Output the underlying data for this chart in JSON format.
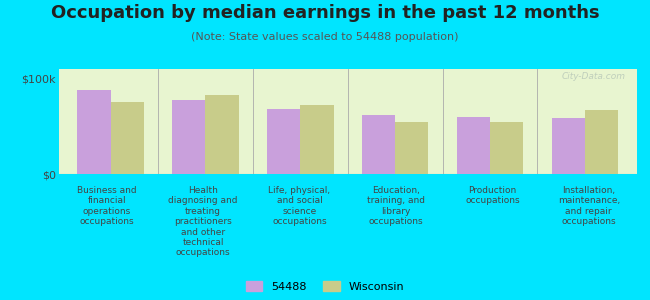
{
  "title": "Occupation by median earnings in the past 12 months",
  "subtitle": "(Note: State values scaled to 54488 population)",
  "categories": [
    "Business and\nfinancial\noperations\noccupations",
    "Health\ndiagnosing and\ntreating\npractitioners\nand other\ntechnical\noccupations",
    "Life, physical,\nand social\nscience\noccupations",
    "Education,\ntraining, and\nlibrary\noccupations",
    "Production\noccupations",
    "Installation,\nmaintenance,\nand repair\noccupations"
  ],
  "values_54488": [
    88000,
    78000,
    68000,
    62000,
    60000,
    59000
  ],
  "values_wisconsin": [
    75000,
    83000,
    72000,
    55000,
    54000,
    67000
  ],
  "color_54488": "#c9a0dc",
  "color_wisconsin": "#c8cc8a",
  "bar_width": 0.35,
  "ylim": [
    0,
    110000
  ],
  "ytick_labels": [
    "$0",
    "$100k"
  ],
  "background_color": "#e8f5d0",
  "outer_background": "#00e5ff",
  "legend_label_54488": "54488",
  "legend_label_wisconsin": "Wisconsin",
  "watermark": "City-Data.com",
  "title_fontsize": 13,
  "subtitle_fontsize": 8,
  "xlabel_fontsize": 6.5
}
